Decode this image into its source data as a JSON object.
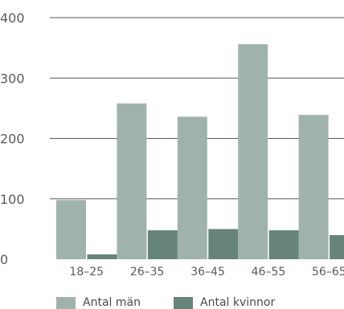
{
  "chart_data": {
    "type": "bar",
    "categories": [
      "18–25",
      "26–35",
      "36–45",
      "46–55",
      "56–65"
    ],
    "series": [
      {
        "name": "Antal män",
        "values": [
          98,
          258,
          236,
          356,
          239
        ],
        "color": "#9fb3ac"
      },
      {
        "name": "Antal kvinnor",
        "values": [
          8,
          48,
          50,
          48,
          40
        ],
        "color": "#66847a"
      }
    ],
    "ylim": [
      0,
      400
    ],
    "yticks": [
      "0",
      "100",
      "200",
      "300",
      "400"
    ],
    "ytick_values": [
      0,
      100,
      200,
      300,
      400
    ],
    "title": "",
    "xlabel": "",
    "ylabel": "",
    "grid": true,
    "legend_position": "bottom-left",
    "axis_color": "#5a5a5a",
    "text_color": "#5a5a5a"
  }
}
